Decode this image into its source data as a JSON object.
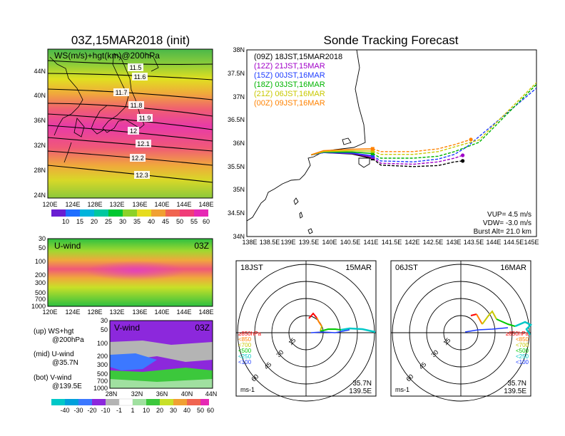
{
  "left_title": "03Z,15MAR2018 (init)",
  "right_title": "Sonde Tracking Forecast",
  "ws_panel": {
    "label": "WS(m/s)+hgt(km)@200hPa",
    "lat_ticks": [
      "44N",
      "40N",
      "36N",
      "32N",
      "28N",
      "24N"
    ],
    "lon_ticks": [
      "120E",
      "124E",
      "128E",
      "132E",
      "136E",
      "140E",
      "144E",
      "148E"
    ],
    "contours": [
      "11.5",
      "11.6",
      "11.7",
      "11.8",
      "11.9",
      "12",
      "12.1",
      "12.2",
      "12.3"
    ],
    "colorbar": [
      "10",
      "15",
      "20",
      "25",
      "30",
      "35",
      "40",
      "45",
      "50",
      "55",
      "60"
    ]
  },
  "u_panel": {
    "label": "U-wind",
    "time": "03Z",
    "p_ticks": [
      "30",
      "50",
      "100",
      "200",
      "300",
      "500",
      "700",
      "1000"
    ],
    "lon_ticks": [
      "120E",
      "124E",
      "128E",
      "132E",
      "136E",
      "140E",
      "144E",
      "148E"
    ]
  },
  "v_panel": {
    "label": "V-wind",
    "time": "03Z",
    "p_ticks": [
      "30",
      "50",
      "100",
      "200",
      "300",
      "500",
      "700",
      "1000"
    ],
    "lat_ticks": [
      "28N",
      "32N",
      "36N",
      "40N",
      "44N"
    ],
    "colorbar": [
      "-40",
      "-30",
      "-20",
      "-10",
      "-1",
      "1",
      "10",
      "20",
      "30",
      "40",
      "50",
      "60"
    ]
  },
  "legend_notes": [
    {
      "line1": "(up) WS+hgt",
      "line2": "@200hPa"
    },
    {
      "line1": "(mid) U-wind",
      "line2": "@35.7N"
    },
    {
      "line1": "(bot) V-wind",
      "line2": "@139.5E"
    }
  ],
  "track_panel": {
    "lat_ticks": [
      "38N",
      "37.5N",
      "37N",
      "36.5N",
      "36N",
      "35.5N",
      "35N",
      "34.5N",
      "34N"
    ],
    "lon_ticks": [
      "138E",
      "138.5E",
      "139E",
      "139.5E",
      "140E",
      "140.5E",
      "141E",
      "141.5E",
      "142E",
      "142.5E",
      "143E",
      "143.5E",
      "144E",
      "144.5E",
      "145E"
    ],
    "legend": [
      {
        "label": "(09Z)  18JST,15MAR2018",
        "color": "#000000"
      },
      {
        "label": "(12Z)  21JST,15MAR",
        "color": "#a000c8"
      },
      {
        "label": "(15Z)  00JST,16MAR",
        "color": "#1e3cff"
      },
      {
        "label": "(18Z)  03JST,16MAR",
        "color": "#00b400"
      },
      {
        "label": "(21Z)  06JST,16MAR",
        "color": "#c8c800"
      },
      {
        "label": "(00Z)  09JST,16MAR",
        "color": "#ff8200"
      }
    ],
    "params": [
      "VUP=  4.5 m/s",
      "VDW= -3.0 m/s",
      "Burst Alt=  21.0 km"
    ]
  },
  "hodo_left": {
    "time": "18JST",
    "date": "15MAR",
    "rings": [
      "15",
      "30",
      "45",
      "60"
    ],
    "unit": "ms-1",
    "lat": "35.7N",
    "lon": "139.5E"
  },
  "hodo_right": {
    "time": "06JST",
    "date": "16MAR",
    "rings": [
      "15",
      "30",
      "45",
      "60"
    ],
    "unit": "ms-1",
    "lat": "35.7N",
    "lon": "139.5E"
  },
  "hodo_legend": [
    {
      "label": "≥850hPa",
      "color": "#ff0000"
    },
    {
      "label": "<850",
      "color": "#ff8200"
    },
    {
      "label": "<700",
      "color": "#c8c800"
    },
    {
      "label": "<500",
      "color": "#00c800"
    },
    {
      "label": "<250",
      "color": "#00c8c8"
    },
    {
      "label": "<100",
      "color": "#1e3cff"
    }
  ],
  "chart_data": {
    "type": "line",
    "title": "Sonde Tracking Forecast",
    "xlim": [
      138,
      145
    ],
    "ylim": [
      34,
      38
    ],
    "series": [
      {
        "name": "(09Z)  18JST,15MAR2018",
        "x": [
          139.5,
          139.8,
          140.5,
          141.0,
          141.2,
          142.0,
          142.6,
          143.0,
          143.2
        ],
        "y": [
          35.75,
          35.8,
          35.77,
          35.67,
          35.53,
          35.5,
          35.52,
          35.6,
          35.62
        ]
      },
      {
        "name": "(12Z)  21JST,15MAR",
        "x": [
          139.5,
          139.8,
          140.5,
          141.0,
          141.2,
          142.0,
          142.6,
          143.0,
          143.2
        ],
        "y": [
          35.75,
          35.8,
          35.78,
          35.7,
          35.57,
          35.55,
          35.6,
          35.68,
          35.74
        ]
      },
      {
        "name": "(15Z)  00JST,16MAR",
        "x": [
          139.5,
          139.8,
          140.5,
          141.0,
          141.2,
          142.0,
          142.6,
          143.0,
          143.3,
          145.0
        ],
        "y": [
          35.75,
          35.8,
          35.79,
          35.73,
          35.62,
          35.6,
          35.66,
          35.76,
          35.92,
          37.18
        ]
      },
      {
        "name": "(18Z)  03JST,16MAR",
        "x": [
          139.5,
          139.8,
          140.5,
          141.0,
          141.2,
          142.0,
          142.6,
          143.0,
          143.6,
          145.0
        ],
        "y": [
          35.75,
          35.81,
          35.81,
          35.78,
          35.68,
          35.68,
          35.72,
          35.82,
          36.02,
          37.26
        ]
      },
      {
        "name": "(21Z)  06JST,16MAR",
        "x": [
          139.5,
          139.8,
          140.5,
          141.0,
          141.2,
          142.0,
          142.6,
          143.0,
          143.6,
          145.0
        ],
        "y": [
          35.75,
          35.82,
          35.84,
          35.83,
          35.76,
          35.76,
          35.82,
          35.92,
          36.07,
          37.3
        ]
      },
      {
        "name": "(00Z)  09JST,16MAR",
        "x": [
          139.5,
          139.8,
          140.5,
          141.0,
          141.2,
          142.0,
          142.6,
          143.0,
          143.4
        ],
        "y": [
          35.75,
          35.84,
          35.87,
          35.88,
          35.82,
          35.82,
          35.88,
          35.97,
          36.08
        ]
      }
    ]
  }
}
